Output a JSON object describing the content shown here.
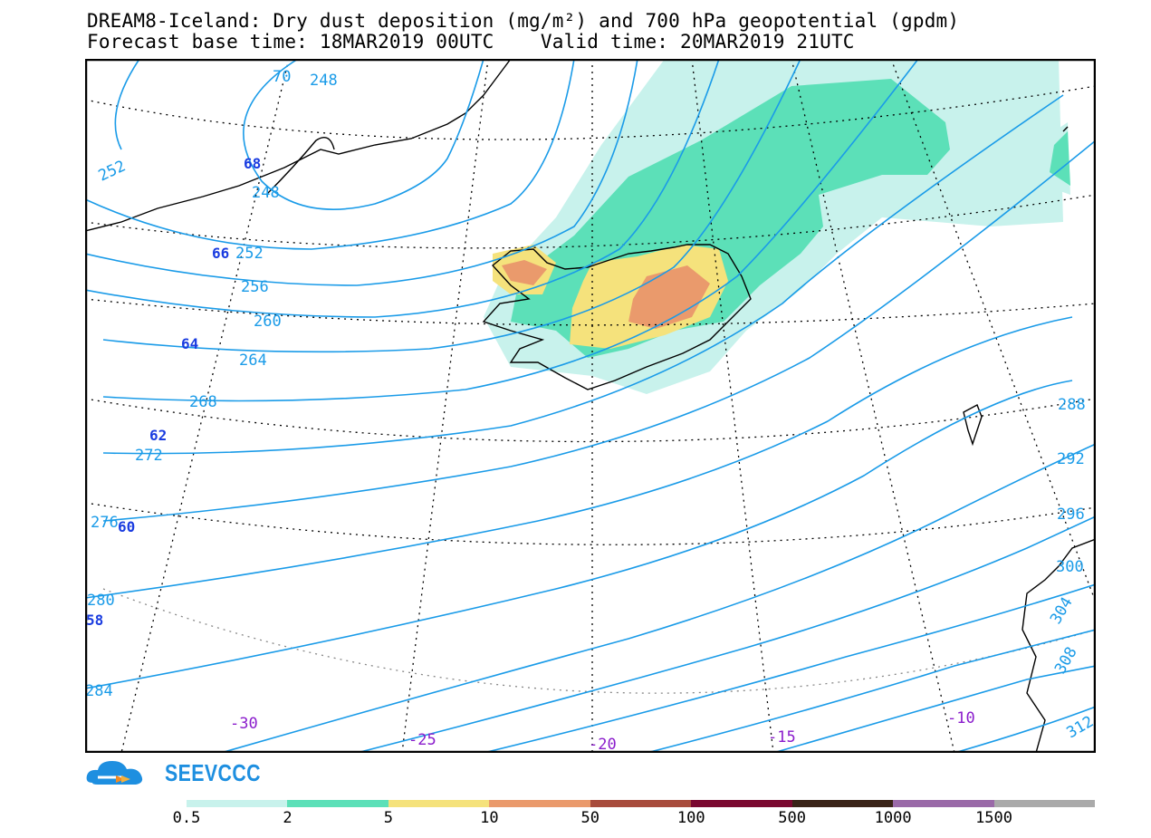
{
  "title": {
    "line1": "DREAM8-Iceland: Dry dust deposition (mg/m²) and 700 hPa geopotential (gpdm)",
    "line2": "Forecast base time: 18MAR2019 00UTC    Valid time: 20MAR2019 21UTC"
  },
  "logo": {
    "text": "SEEVCCC",
    "icon": "cloud-icon"
  },
  "colors": {
    "contour": "#1a9be8",
    "lat_label": "#1a3ce0",
    "lon_label": "#8a1ccc",
    "coast": "#000000"
  },
  "colorbar": {
    "colors": [
      "#c8f2ec",
      "#5ce0b8",
      "#f5e27c",
      "#ea9a6c",
      "#a84c3c",
      "#7a0830",
      "#3a2418",
      "#9a6aa8",
      "#aaaaaa"
    ],
    "labels": [
      "0.5",
      "2",
      "5",
      "10",
      "50",
      "100",
      "500",
      "1000",
      "1500"
    ]
  },
  "contour_labels": [
    "70",
    "248",
    "252",
    "248",
    "252",
    "256",
    "260",
    "264",
    "268",
    "272",
    "276",
    "280",
    "284",
    "288",
    "292",
    "296",
    "300",
    "304",
    "308",
    "312"
  ],
  "lat_labels": [
    "68",
    "66",
    "64",
    "62",
    "60",
    "58"
  ],
  "lon_labels": [
    "-30",
    "-25",
    "-20",
    "-15",
    "-10"
  ]
}
